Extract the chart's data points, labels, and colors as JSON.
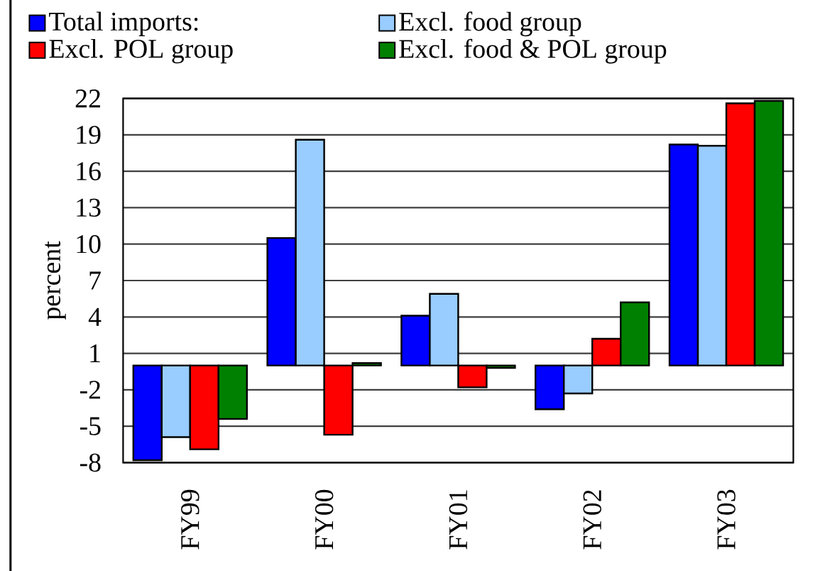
{
  "chart_data": {
    "type": "bar",
    "categories": [
      "FY99",
      "FY00",
      "FY01",
      "FY02",
      "FY03"
    ],
    "ylabel": "percent",
    "series": [
      {
        "name": "Total imports:",
        "color": "#0000ff",
        "values": [
          -7.8,
          10.5,
          4.1,
          -3.6,
          18.2
        ]
      },
      {
        "name": "Excl. food group",
        "color": "#99ccff",
        "values": [
          -5.9,
          18.6,
          5.9,
          -2.3,
          18.1
        ]
      },
      {
        "name": "Excl. POL group",
        "color": "#ff0000",
        "values": [
          -6.9,
          -5.7,
          -1.8,
          2.2,
          21.6
        ]
      },
      {
        "name": "Excl. food & POL group",
        "color": "#008000",
        "values": [
          -4.4,
          0.2,
          -0.2,
          5.2,
          21.8
        ]
      }
    ],
    "ylim": [
      -8,
      22
    ],
    "yticks": [
      -8,
      -5,
      -2,
      1,
      4,
      7,
      10,
      13,
      16,
      19,
      22
    ],
    "grid": "y",
    "legend": "top"
  }
}
